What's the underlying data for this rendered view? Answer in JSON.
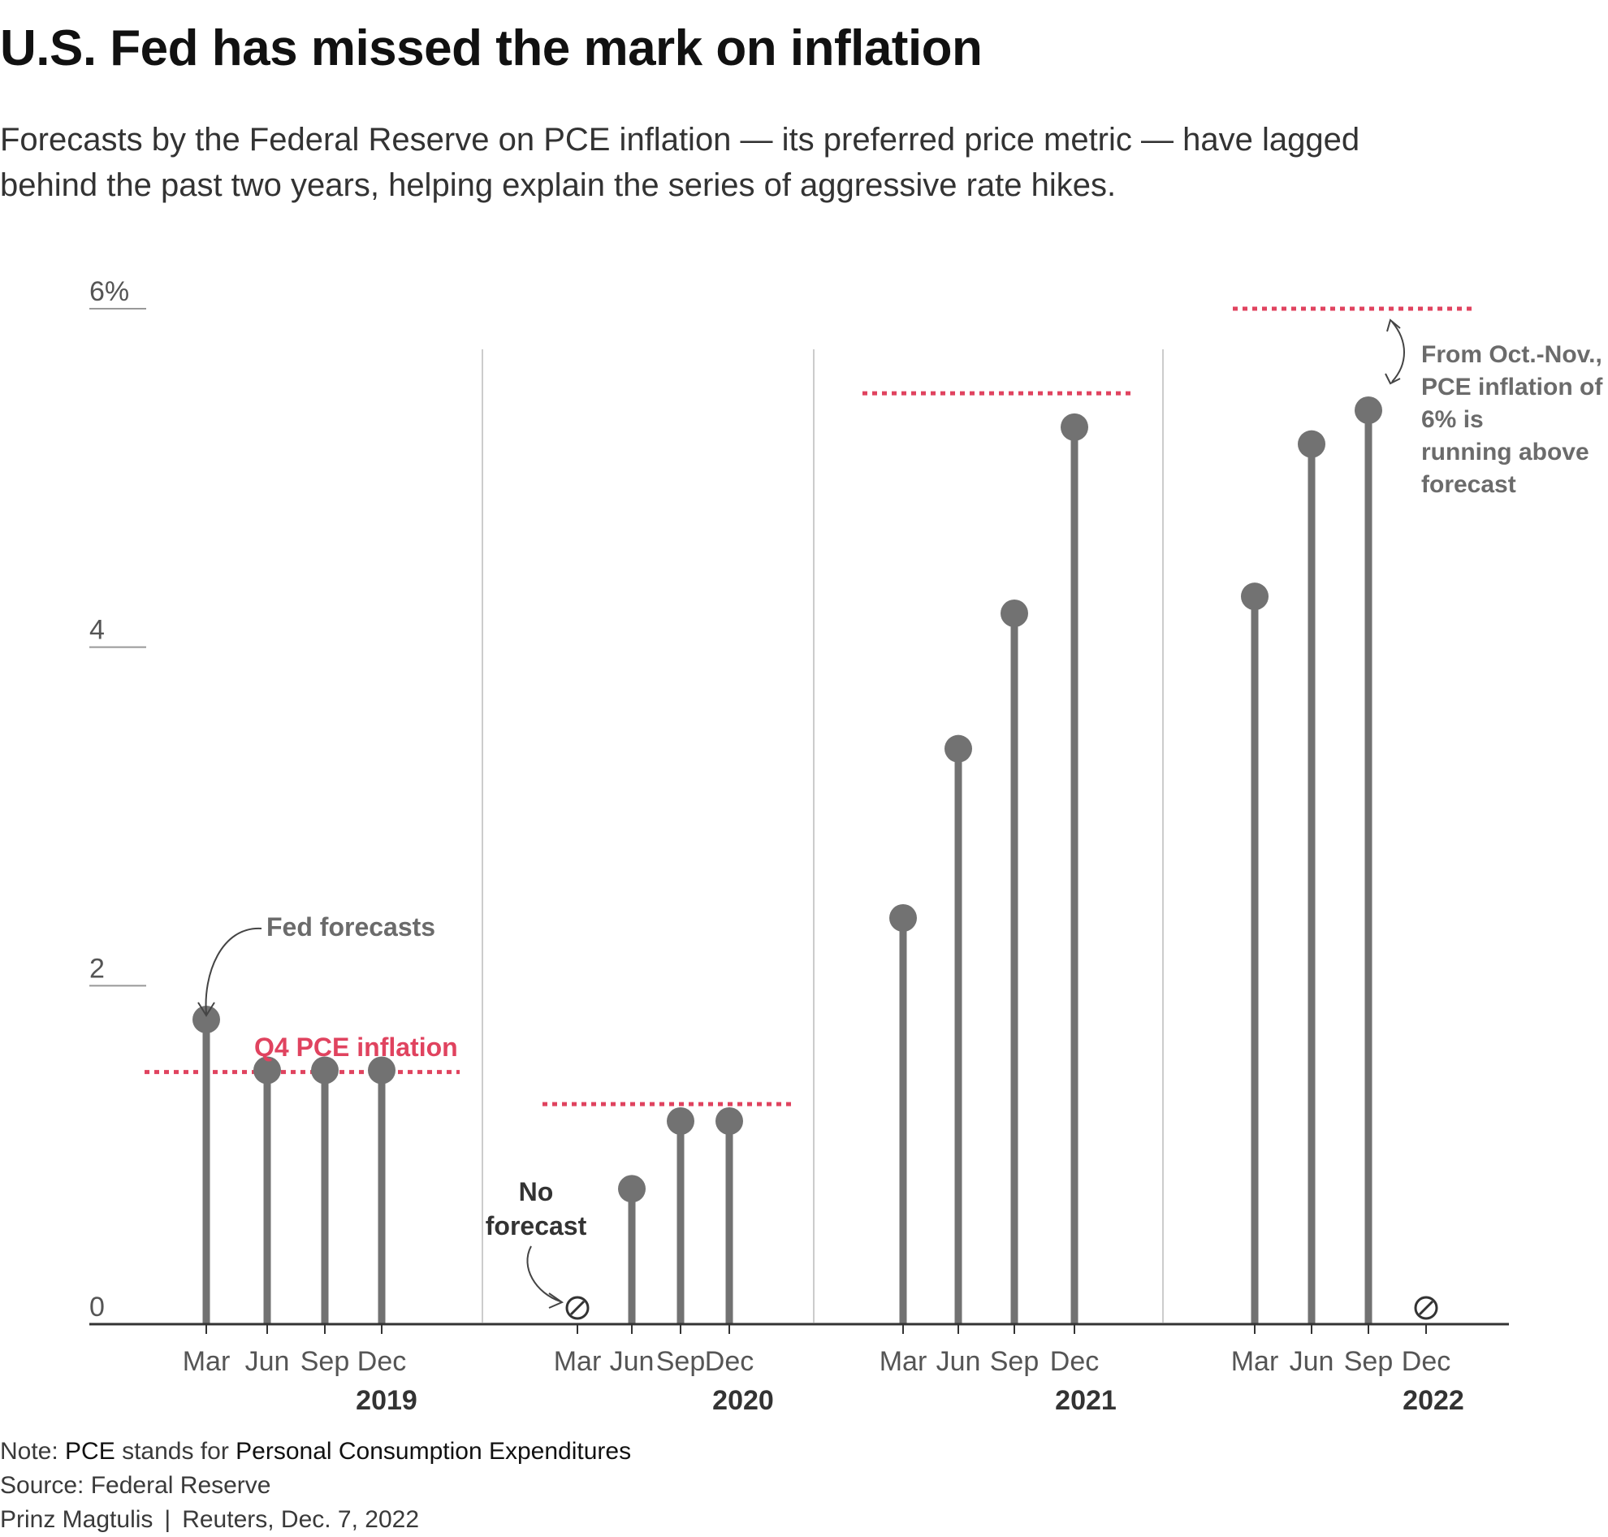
{
  "title": "U.S. Fed has missed the mark on inflation",
  "subtitle": "Forecasts by the Federal Reserve on PCE inflation — its preferred price metric — have lagged behind the past two years, helping explain the series of aggressive rate hikes.",
  "colors": {
    "forecast": "#727272",
    "actual": "#e0435f",
    "axis": "#333333",
    "divider": "#cccccc",
    "annotation": "#6b6b6b"
  },
  "chart_data": {
    "type": "lollipop",
    "y_ticks": [
      {
        "value": 0,
        "label": "0"
      },
      {
        "value": 2,
        "label": "2"
      },
      {
        "value": 4,
        "label": "4"
      },
      {
        "value": 6,
        "label": "6%"
      }
    ],
    "ylim": [
      0,
      6
    ],
    "grid": false,
    "years": [
      {
        "year": "2019",
        "quarters": [
          "Mar",
          "Jun",
          "Sep",
          "Dec"
        ],
        "forecasts": [
          1.8,
          1.5,
          1.5,
          1.5
        ],
        "actual_q4": 1.49
      },
      {
        "year": "2020",
        "quarters": [
          "Mar",
          "Jun",
          "Sep",
          "Dec"
        ],
        "forecasts": [
          null,
          0.8,
          1.2,
          1.2
        ],
        "actual_q4": 1.3
      },
      {
        "year": "2021",
        "quarters": [
          "Mar",
          "Jun",
          "Sep",
          "Dec"
        ],
        "forecasts": [
          2.4,
          3.4,
          4.2,
          5.3
        ],
        "actual_q4": 5.5
      },
      {
        "year": "2022",
        "quarters": [
          "Mar",
          "Jun",
          "Sep",
          "Dec"
        ],
        "forecasts": [
          4.3,
          5.2,
          5.4,
          null
        ],
        "actual_q4": 6.0
      }
    ],
    "annotations": {
      "fed_forecasts": "Fed forecasts",
      "q4_pce": "Q4 PCE inflation",
      "no_forecast": [
        "No",
        "forecast"
      ],
      "oct_nov": [
        "From Oct.-Nov.,",
        "PCE inflation of",
        "6% is",
        "running above",
        "forecast"
      ]
    }
  },
  "notes": {
    "note_prefix": "Note: ",
    "note_term": "PCE",
    "note_mid": " stands for ",
    "note_def": "Personal Consumption Expenditures",
    "source": "Source: Federal Reserve",
    "author": "Prinz Magtulis",
    "separator": "|",
    "credit": "Reuters, Dec. 7, 2022"
  }
}
